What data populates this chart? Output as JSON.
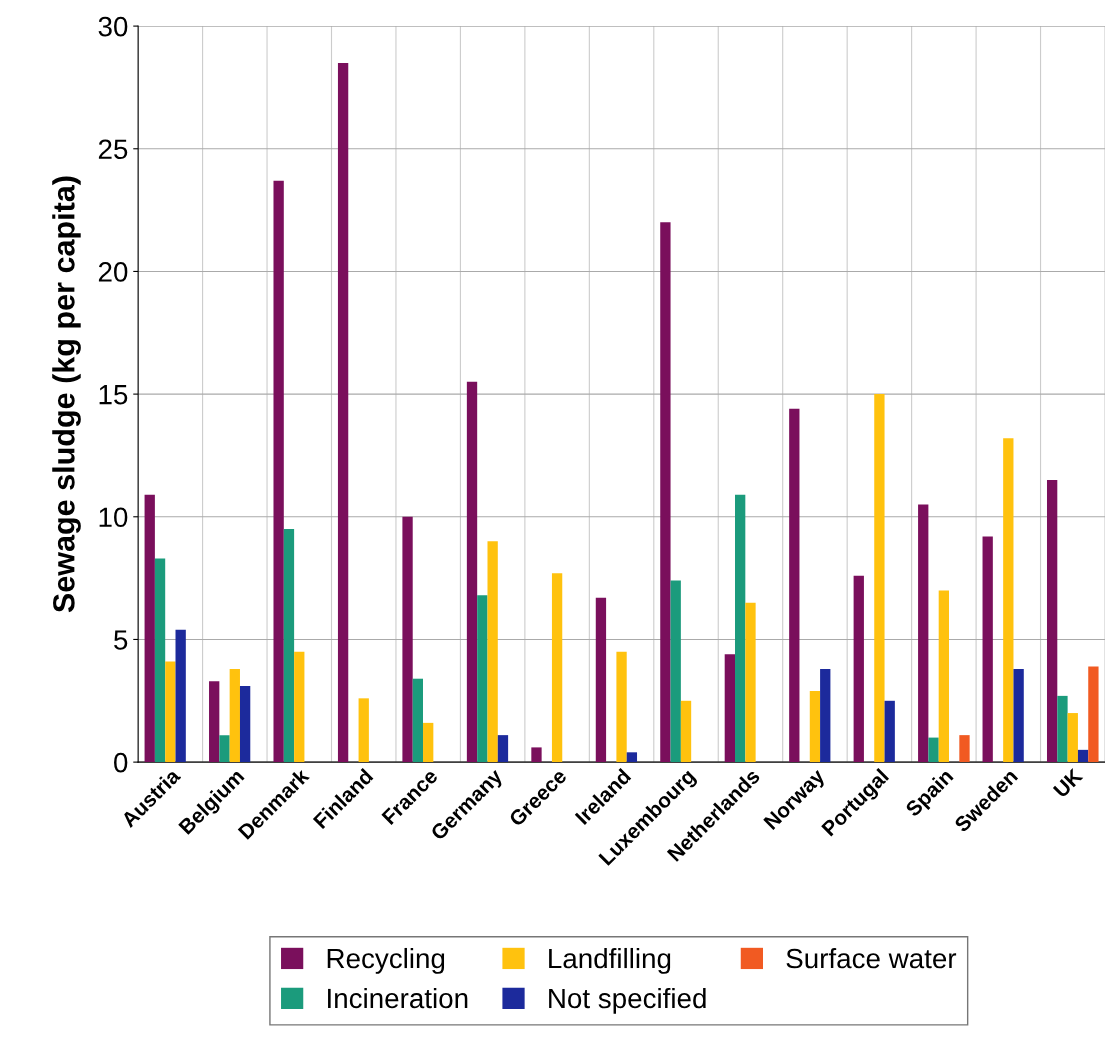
{
  "chart_data": {
    "type": "bar",
    "ylabel": "Sewage sludge (kg per capita)",
    "categories": [
      "Austria",
      "Belgium",
      "Denmark",
      "Finland",
      "France",
      "Germany",
      "Greece",
      "Ireland",
      "Luxembourg",
      "Netherlands",
      "Norway",
      "Portugal",
      "Spain",
      "Sweden",
      "UK"
    ],
    "series": [
      {
        "name": "Recycling",
        "color": "#7a0f5c",
        "values": [
          10.9,
          3.3,
          23.7,
          28.5,
          10.0,
          15.5,
          0.6,
          6.7,
          22.0,
          4.4,
          14.4,
          7.6,
          10.5,
          9.2,
          11.5
        ]
      },
      {
        "name": "Incineration",
        "color": "#1b9b7c",
        "values": [
          8.3,
          1.1,
          9.5,
          null,
          3.4,
          6.8,
          null,
          null,
          7.4,
          10.9,
          null,
          null,
          1.0,
          null,
          2.7
        ]
      },
      {
        "name": "Landfilling",
        "color": "#ffc20e",
        "values": [
          4.1,
          3.8,
          4.5,
          2.6,
          1.6,
          9.0,
          7.7,
          4.5,
          2.5,
          6.5,
          2.9,
          15.0,
          7.0,
          13.2,
          2.0
        ]
      },
      {
        "name": "Not specified",
        "color": "#1c2a9c",
        "values": [
          5.4,
          3.1,
          null,
          null,
          null,
          1.1,
          null,
          0.4,
          null,
          null,
          3.8,
          2.5,
          null,
          3.8,
          0.5
        ]
      },
      {
        "name": "Surface water",
        "color": "#f15a22",
        "values": [
          null,
          null,
          null,
          null,
          null,
          null,
          null,
          null,
          null,
          null,
          null,
          null,
          1.1,
          null,
          3.9
        ]
      }
    ],
    "ylim": [
      0,
      30
    ],
    "yticks": [
      0,
      5,
      10,
      15,
      20,
      25,
      30
    ],
    "grid": true,
    "legend": "bottom"
  }
}
